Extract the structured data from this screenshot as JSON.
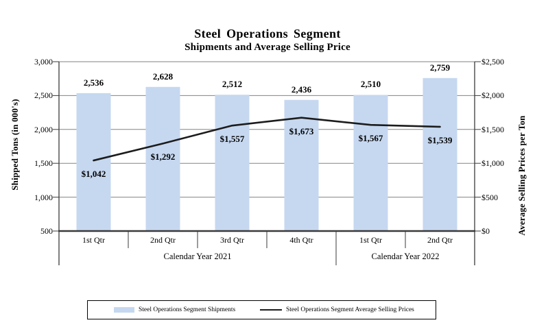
{
  "chart_data": {
    "type": "bar",
    "title": "Steel Operations Segment",
    "subtitle": "Shipments and Average Selling Price",
    "categories": [
      "1st Qtr",
      "2nd Qtr",
      "3rd Qtr",
      "4th Qtr",
      "1st Qtr",
      "2nd Qtr"
    ],
    "category_groups": [
      {
        "label": "Calendar Year 2021",
        "span": 4
      },
      {
        "label": "Calendar Year 2022",
        "span": 2
      }
    ],
    "series": [
      {
        "name": "Steel Operations Segment Shipments",
        "type": "bar",
        "axis": "left",
        "color": "#c6d8f0",
        "values": [
          2536,
          2628,
          2512,
          2436,
          2510,
          2759
        ],
        "labels": [
          "2,536",
          "2,628",
          "2,512",
          "2,436",
          "2,510",
          "2,759"
        ]
      },
      {
        "name": "Steel Operations Segment Average Selling Prices",
        "type": "line",
        "axis": "right",
        "color": "#1c1c1c",
        "values": [
          1042,
          1292,
          1557,
          1673,
          1567,
          1539
        ],
        "labels": [
          "$1,042",
          "$1,292",
          "$1,557",
          "$1,673",
          "$1,567",
          "$1,539"
        ]
      }
    ],
    "left_axis": {
      "label": "Shipped Tons (in 000's)",
      "min": 500,
      "max": 3000,
      "step": 500,
      "tick_labels": [
        "3,000",
        "2,500",
        "2,000",
        "1,500",
        "1,000",
        "500"
      ]
    },
    "right_axis": {
      "label": "Average Selling Prices per Ton",
      "min": 0,
      "max": 2500,
      "step": 500,
      "tick_labels": [
        "$2,500",
        "$2,000",
        "$1,500",
        "$1,000",
        "$500",
        "$0"
      ]
    },
    "legend": {
      "position": "bottom",
      "items": [
        {
          "label": "Steel Operations Segment Shipments",
          "swatch": "bar",
          "color": "#c6d8f0"
        },
        {
          "label": "Steel Operations Segment Average Selling Prices",
          "swatch": "line",
          "color": "#1c1c1c"
        }
      ]
    },
    "grid": true,
    "colors": {
      "gridline": "#828282",
      "axis": "#3a3a3a",
      "text": "#000000",
      "background": "#ffffff"
    }
  }
}
